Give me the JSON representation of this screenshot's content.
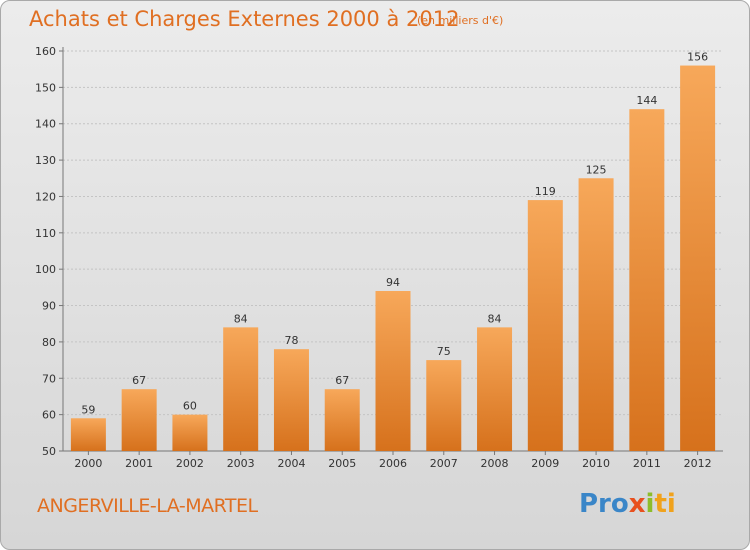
{
  "chart_data": {
    "type": "bar",
    "title": "Achats et Charges Externes 2000 à 2012",
    "subtitle": "(en milliers d'€)",
    "categories": [
      "2000",
      "2001",
      "2002",
      "2003",
      "2004",
      "2005",
      "2006",
      "2007",
      "2008",
      "2009",
      "2010",
      "2011",
      "2012"
    ],
    "values": [
      59,
      67,
      60,
      84,
      78,
      67,
      94,
      75,
      84,
      119,
      125,
      144,
      156
    ],
    "ylim": [
      50,
      160
    ],
    "yticks": [
      50,
      60,
      70,
      80,
      90,
      100,
      110,
      120,
      130,
      140,
      150,
      160
    ],
    "grid": true,
    "bar_color_top": "#f7a85a",
    "bar_color_bottom": "#d6711c"
  },
  "place_name": "ANGERVILLE-LA-MARTEL",
  "logo": {
    "parts": [
      "Pro",
      "x",
      "i",
      "ti"
    ]
  }
}
